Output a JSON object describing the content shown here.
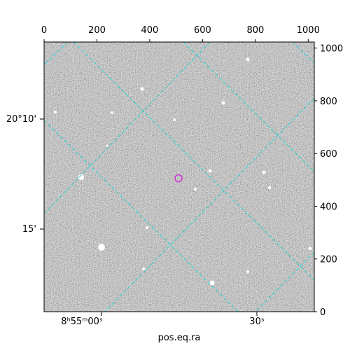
{
  "chart_data": {
    "type": "image",
    "xlabel": "pos.eq.ra",
    "xlim": [
      0,
      1023
    ],
    "ylim": [
      0,
      1023
    ],
    "xticks": [
      0,
      200,
      400,
      600,
      800,
      1000
    ],
    "yticks": [
      0,
      200,
      400,
      600,
      800,
      1000
    ],
    "dec_labels": [
      "20°10'",
      "15'"
    ],
    "ra_labels": [
      "8ʰ55ᵐ00ˢ",
      "30ˢ"
    ],
    "marker": {
      "x": [
        509
      ],
      "y": [
        506
      ],
      "color": "#cc33cc"
    }
  }
}
